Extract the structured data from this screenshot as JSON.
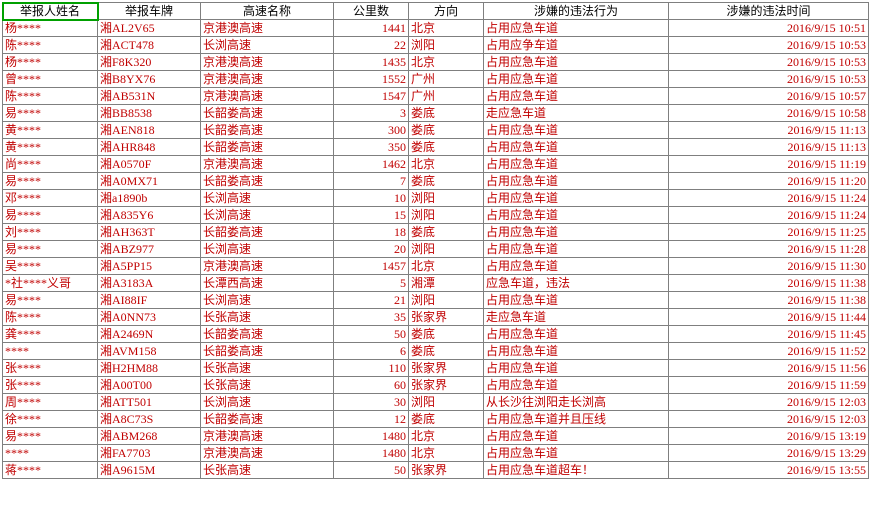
{
  "columns": [
    {
      "label": "举报人姓名",
      "class": "c0",
      "selected": true
    },
    {
      "label": "举报车牌",
      "class": "c1"
    },
    {
      "label": "高速名称",
      "class": "c2"
    },
    {
      "label": "公里数",
      "class": "c3"
    },
    {
      "label": "方向",
      "class": "c4"
    },
    {
      "label": "涉嫌的违法行为",
      "class": "c5"
    },
    {
      "label": "涉嫌的违法时间",
      "class": "c6"
    }
  ],
  "align": [
    "left",
    "left",
    "left",
    "right",
    "left",
    "left",
    "right"
  ],
  "rows": [
    [
      "杨****",
      "湘AL2V65",
      "京港澳高速",
      "1441",
      "北京",
      "占用应急车道",
      "2016/9/15 10:51"
    ],
    [
      "陈****",
      "湘ACT478",
      "长浏高速",
      "22",
      "浏阳",
      "占用应争车道",
      "2016/9/15 10:53"
    ],
    [
      "杨****",
      "湘F8K320",
      "京港澳高速",
      "1435",
      "北京",
      "占用应急车道",
      "2016/9/15 10:53"
    ],
    [
      "曾****",
      "湘B8YX76",
      "京港澳高速",
      "1552",
      "广州",
      "占用应急车道",
      "2016/9/15 10:53"
    ],
    [
      "陈****",
      "湘AB531N",
      "京港澳高速",
      "1547",
      "广州",
      "占用应急车道",
      "2016/9/15 10:57"
    ],
    [
      "易****",
      "湘BB8538",
      "长韶娄高速",
      "3",
      "娄底",
      "走应急车道",
      "2016/9/15 10:58"
    ],
    [
      "黄****",
      "湘AEN818",
      "长韶娄高速",
      "300",
      "娄底",
      "占用应急车道",
      "2016/9/15 11:13"
    ],
    [
      "黄****",
      "湘AHR848",
      "长韶娄高速",
      "350",
      "娄底",
      "占用应急车道",
      "2016/9/15 11:13"
    ],
    [
      "尚****",
      "湘A0570F",
      "京港澳高速",
      "1462",
      "北京",
      "占用应急车道",
      "2016/9/15 11:19"
    ],
    [
      "易****",
      "湘A0MX71",
      "长韶娄高速",
      "7",
      "娄底",
      "占用应急车道",
      "2016/9/15 11:20"
    ],
    [
      "邓****",
      "湘a1890b",
      "长浏高速",
      "10",
      "浏阳",
      "占用应急车道",
      "2016/9/15 11:24"
    ],
    [
      "易****",
      "湘A835Y6",
      "长浏高速",
      "15",
      "浏阳",
      "占用应急车道",
      "2016/9/15 11:24"
    ],
    [
      "刘****",
      "湘AH363T",
      "长韶娄高速",
      "18",
      "娄底",
      "占用应急车道",
      "2016/9/15 11:25"
    ],
    [
      "易****",
      "湘ABZ977",
      "长浏高速",
      "20",
      "浏阳",
      "占用应急车道",
      "2016/9/15 11:28"
    ],
    [
      "吴****",
      "湘A5PP15",
      "京港澳高速",
      "1457",
      "北京",
      "占用应急车道",
      "2016/9/15 11:30"
    ],
    [
      "*社****义哥",
      "湘A3183A",
      "长潭西高速",
      "5",
      "湘潭",
      "应急车道，违法",
      "2016/9/15 11:38"
    ],
    [
      "易****",
      "湘AI88IF",
      "长浏高速",
      "21",
      "浏阳",
      "占用应急车道",
      "2016/9/15 11:38"
    ],
    [
      "陈****",
      "湘A0NN73",
      "长张高速",
      "35",
      "张家界",
      "走应急车道",
      "2016/9/15 11:44"
    ],
    [
      "龚****",
      "湘A2469N",
      "长韶娄高速",
      "50",
      "娄底",
      "占用应急车道",
      "2016/9/15 11:45"
    ],
    [
      "****",
      "湘AVM158",
      "长韶娄高速",
      "6",
      "娄底",
      "占用应急车道",
      "2016/9/15 11:52"
    ],
    [
      "张****",
      "湘H2HM88",
      "长张高速",
      "110",
      "张家界",
      "占用应急车道",
      "2016/9/15 11:56"
    ],
    [
      "张****",
      "湘A00T00",
      "长张高速",
      "60",
      "张家界",
      "占用应急车道",
      "2016/9/15 11:59"
    ],
    [
      "周****",
      "湘ATT501",
      "长浏高速",
      "30",
      "浏阳",
      "从长沙往浏阳走长浏高",
      "2016/9/15 12:03"
    ],
    [
      "徐****",
      "湘A8C73S",
      "长韶娄高速",
      "12",
      "娄底",
      "占用应急车道并且压线",
      "2016/9/15 12:03"
    ],
    [
      "易****",
      "湘ABM268",
      "京港澳高速",
      "1480",
      "北京",
      "占用应急车道",
      "2016/9/15 13:19"
    ],
    [
      "****",
      "湘FA7703",
      "京港澳高速",
      "1480",
      "北京",
      "占用应急车道",
      "2016/9/15 13:29"
    ],
    [
      "蒋****",
      "湘A9615M",
      "长张高速",
      "50",
      "张家界",
      "占用应急车道超车！",
      "2016/9/15 13:55"
    ]
  ]
}
